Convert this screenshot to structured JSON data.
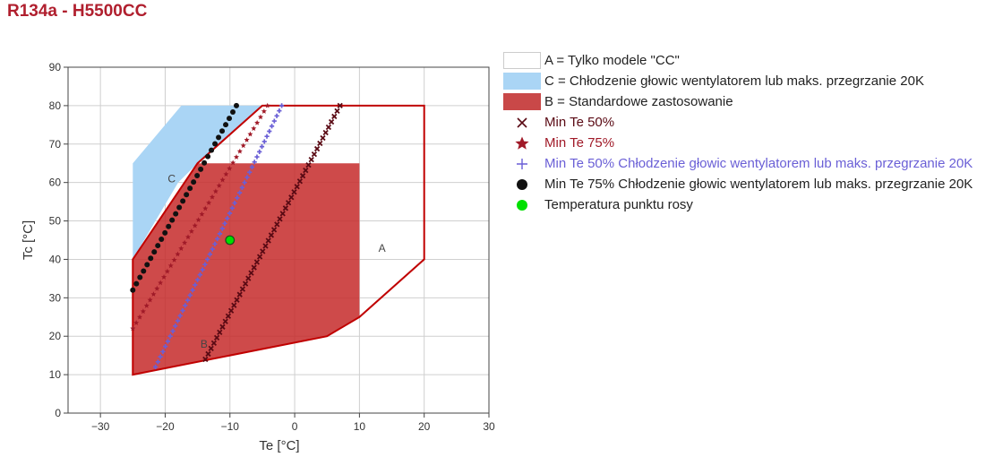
{
  "title": "R134a - H5500CC",
  "colors": {
    "title": "#b01f2e",
    "region_a_stroke": "#c00000",
    "region_b_fill": "#c62a2a",
    "region_c_fill": "#aad5f5",
    "min50": "#5a0a14",
    "min75": "#a01a28",
    "min50_fan": "#6a5fd6",
    "min75_fan": "#111111",
    "dew": "#00e000"
  },
  "chart_data": {
    "type": "scatter",
    "xlabel": "Te [°C]",
    "ylabel": "Tc [°C]",
    "xlim": [
      -35,
      30
    ],
    "ylim": [
      0,
      90
    ],
    "xticks": [
      -30,
      -20,
      -10,
      0,
      10,
      20,
      30
    ],
    "yticks": [
      0,
      10,
      20,
      30,
      40,
      50,
      60,
      70,
      80,
      90
    ],
    "xtick_labels": [
      "−30",
      "−20",
      "−10",
      "0",
      "10",
      "20",
      "30"
    ],
    "ytick_labels": [
      "0",
      "10",
      "20",
      "30",
      "40",
      "50",
      "60",
      "70",
      "80",
      "90"
    ],
    "grid": true,
    "regions": [
      {
        "name": "A",
        "label": "A",
        "legend": "A = Tylko modele \"CC\"",
        "points": [
          [
            -25,
            10
          ],
          [
            5,
            20
          ],
          [
            10,
            25
          ],
          [
            20,
            40
          ],
          [
            20,
            80
          ],
          [
            -5,
            80
          ],
          [
            -15,
            65
          ],
          [
            -25,
            40
          ]
        ],
        "label_at": [
          13.5,
          42
        ]
      },
      {
        "name": "C",
        "label": "C",
        "legend": "C = Chłodzenie głowic wentylatorem lub maks. przegrzanie 20K",
        "points": [
          [
            -25,
            40
          ],
          [
            -25,
            65
          ],
          [
            -17.5,
            80
          ],
          [
            -5,
            80
          ],
          [
            -15,
            65
          ],
          [
            -18,
            60
          ]
        ],
        "label_at": [
          -19,
          60
        ]
      },
      {
        "name": "B",
        "label": "B",
        "legend": "B = Standardowe zastosowanie",
        "points": [
          [
            -25,
            10
          ],
          [
            5,
            20
          ],
          [
            10,
            25
          ],
          [
            10,
            65
          ],
          [
            -15,
            65
          ],
          [
            -25,
            40
          ]
        ],
        "label_at": [
          -14,
          17
        ]
      }
    ],
    "series": [
      {
        "name": "Min Te 50%",
        "marker": "x",
        "from": [
          -13.8,
          14
        ],
        "to": [
          7,
          80
        ],
        "count": 48
      },
      {
        "name": "Min Te 75%",
        "marker": "star",
        "from": [
          -25,
          22
        ],
        "to": [
          -4.2,
          80
        ],
        "count": 40
      },
      {
        "name": "Min Te 50% Chłodzenie głowic wentylatorem lub maks. przegrzanie 20K",
        "marker": "plus",
        "from": [
          -21.5,
          12
        ],
        "to": [
          -2,
          80
        ],
        "count": 52
      },
      {
        "name": "Min Te 75% Chłodzenie głowic wentylatorem lub maks. przegrzanie 20K",
        "marker": "dot",
        "from": [
          -25,
          32
        ],
        "to": [
          -9,
          80
        ],
        "count": 30
      },
      {
        "name": "Temperatura punktu rosy",
        "marker": "dew",
        "points": [
          [
            -10,
            45
          ]
        ]
      }
    ]
  }
}
